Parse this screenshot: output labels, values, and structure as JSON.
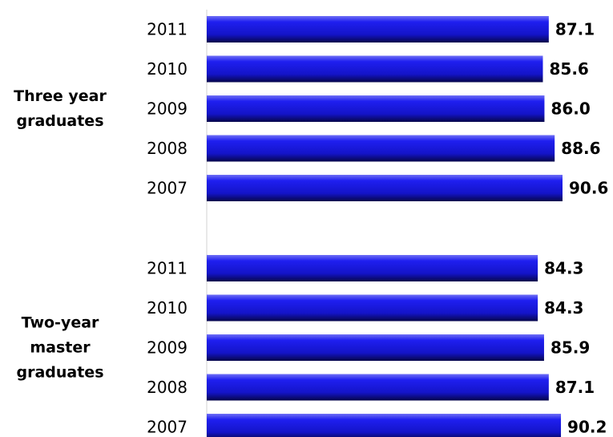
{
  "chart_data": {
    "type": "bar",
    "orientation": "horizontal",
    "title": "",
    "xlabel": "",
    "ylabel": "",
    "xlim": [
      0,
      90.6
    ],
    "grid": false,
    "legend": "none",
    "bar_color": "#1a1ae6",
    "groups": [
      {
        "name": "Three year graduates",
        "label_lines": [
          "Three year",
          "graduates"
        ],
        "categories": [
          "2011",
          "2010",
          "2009",
          "2008",
          "2007"
        ],
        "values": [
          87.1,
          85.6,
          86.0,
          88.6,
          90.6
        ],
        "value_labels": [
          "87.1",
          "85.6",
          "86.0",
          "88.6",
          "90.6"
        ]
      },
      {
        "name": "Two-year master graduates",
        "label_lines": [
          "Two-year",
          "master",
          "graduates"
        ],
        "categories": [
          "2011",
          "2010",
          "2009",
          "2008",
          "2007"
        ],
        "values": [
          84.3,
          84.3,
          85.9,
          87.1,
          90.2
        ],
        "value_labels": [
          "84.3",
          "84.3",
          "85.9",
          "87.1",
          "90.2"
        ]
      }
    ]
  }
}
